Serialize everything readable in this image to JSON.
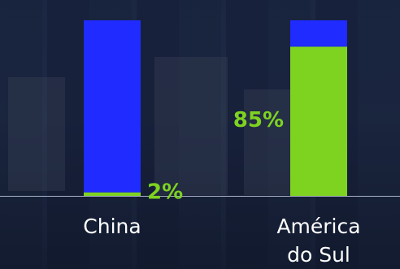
{
  "chart_data": {
    "type": "bar",
    "stacked": true,
    "categories": [
      "China",
      "América do Sul"
    ],
    "category_label_lines": [
      [
        "China"
      ],
      [
        "América",
        "do Sul"
      ]
    ],
    "series": [
      {
        "values": [
          2,
          85
        ],
        "color": "#7ed321"
      },
      {
        "values": [
          98,
          15
        ],
        "color": "#1f2bff"
      }
    ],
    "data_labels": [
      {
        "category": "China",
        "text": "2%"
      },
      {
        "category": "América do Sul",
        "text": "85%"
      }
    ],
    "ylim": [
      0,
      100
    ],
    "grid": false,
    "legend": "none",
    "title": "",
    "xlabel": "",
    "ylabel": ""
  }
}
